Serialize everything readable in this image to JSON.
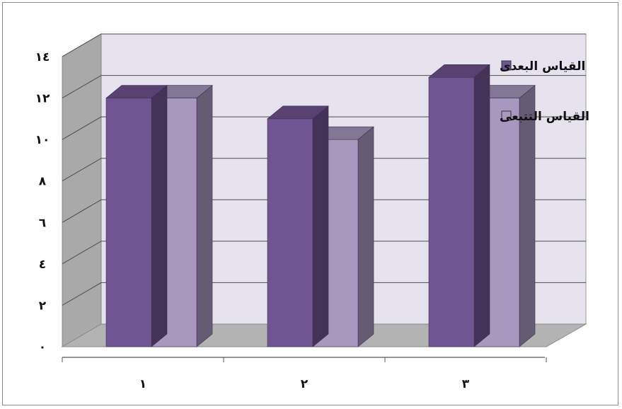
{
  "chart_data": {
    "type": "bar",
    "categories": [
      "١",
      "٢",
      "٣"
    ],
    "series": [
      {
        "name": "القياس البعدى",
        "values": [
          12,
          11,
          13
        ],
        "color": "#6f5592"
      },
      {
        "name": "القياس التتبعى",
        "values": [
          12,
          10,
          12
        ],
        "color": "#a898c0"
      }
    ],
    "ylim": [
      0,
      14
    ],
    "yticks": [
      {
        "value": 0,
        "label": "٠"
      },
      {
        "value": 2,
        "label": "٢"
      },
      {
        "value": 4,
        "label": "٤"
      },
      {
        "value": 6,
        "label": "٦"
      },
      {
        "value": 8,
        "label": "٨"
      },
      {
        "value": 10,
        "label": "١٠"
      },
      {
        "value": 12,
        "label": "١٢"
      },
      {
        "value": 14,
        "label": "١٤"
      }
    ],
    "grid": true,
    "legend_position": "right",
    "three_d": true,
    "colors": {
      "wall": "#e6e3ee",
      "side_wall": "#a9a9a9",
      "floor": "#b3b3b3",
      "grid": "#4d4d4d"
    }
  }
}
